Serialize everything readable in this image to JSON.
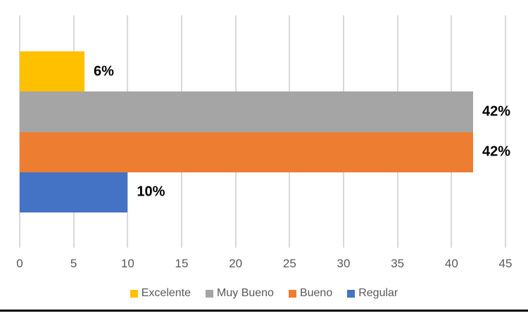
{
  "chart_data": {
    "type": "bar",
    "orientation": "horizontal",
    "title": "",
    "categories": [
      "Excelente",
      "Muy Bueno",
      "Bueno",
      "Regular"
    ],
    "values": [
      6,
      42,
      42,
      10
    ],
    "data_labels": [
      "6%",
      "42%",
      "42%",
      "10%"
    ],
    "series_colors": [
      "#FFC000",
      "#A5A5A5",
      "#ED7D31",
      "#4472C4"
    ],
    "xlim": [
      0,
      45
    ],
    "x_ticks": [
      0,
      5,
      10,
      15,
      20,
      25,
      30,
      35,
      40,
      45
    ],
    "xlabel": "",
    "ylabel": "",
    "grid": "vertical-major",
    "legend_position": "bottom",
    "colors": {
      "gridline": "#D9D9D9",
      "axis_text": "#595959",
      "legend_text": "#595959",
      "data_label": "#000000",
      "background": "#FFFFFF",
      "document_rule": "#000000"
    }
  }
}
